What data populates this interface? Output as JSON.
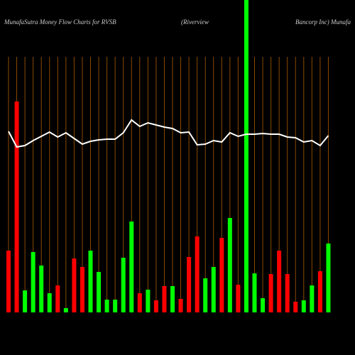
{
  "chart_data": {
    "type": "bar",
    "title": "MunafaSutra  Money Flow  Charts for RVSB",
    "subtitle": "(Riverview",
    "subtitle2": "Bancorp Inc) Munafa",
    "categories": [
      null,
      null,
      null,
      null,
      null,
      null,
      null,
      null,
      null,
      null,
      null,
      null,
      null,
      null,
      null,
      null,
      null,
      null,
      null,
      null,
      null,
      null,
      null,
      null,
      null,
      null,
      null,
      null,
      null,
      null,
      null,
      null,
      null,
      null,
      null,
      null,
      null,
      null,
      null,
      null
    ],
    "series": [
      {
        "values": [
          87,
          297,
          31,
          85,
          66,
          27,
          38,
          6,
          76,
          64,
          87,
          57,
          18,
          18,
          77,
          128,
          27,
          32,
          17,
          37,
          37,
          19,
          78,
          107,
          48,
          64,
          105,
          133,
          39,
          440,
          55,
          20,
          54,
          87,
          54,
          15,
          17,
          38,
          58,
          97
        ],
        "colors": [
          "#ff0000",
          "#ff0000",
          "#00ff00",
          "#00ff00",
          "#00ff00",
          "#00ff00",
          "#ff0000",
          "#00ff00",
          "#ff0000",
          "#ff0000",
          "#00ff00",
          "#00ff00",
          "#00ff00",
          "#00ff00",
          "#00ff00",
          "#00ff00",
          "#ff0000",
          "#00ff00",
          "#ff0000",
          "#ff0000",
          "#00ff00",
          "#ff0000",
          "#ff0000",
          "#ff0000",
          "#00ff00",
          "#00ff00",
          "#ff0000",
          "#00ff00",
          "#ff0000",
          "#00ff00",
          "#00ff00",
          "#00ff00",
          "#ff0000",
          "#ff0000",
          "#ff0000",
          "#ff0000",
          "#00ff00",
          "#00ff00",
          "#ff0000",
          "#00ff00"
        ]
      },
      {
        "type": "line",
        "color": "#ffffff",
        "values": [
          255,
          233,
          235,
          242,
          248,
          254,
          247,
          253,
          245,
          237,
          241,
          243,
          244,
          244,
          253,
          271,
          262,
          267,
          264,
          261,
          259,
          253,
          254,
          236,
          237,
          242,
          240,
          253,
          248,
          251,
          251,
          252,
          251,
          251,
          247,
          246,
          240,
          242,
          235,
          249
        ]
      }
    ],
    "grid_color": "#8b4a00"
  }
}
